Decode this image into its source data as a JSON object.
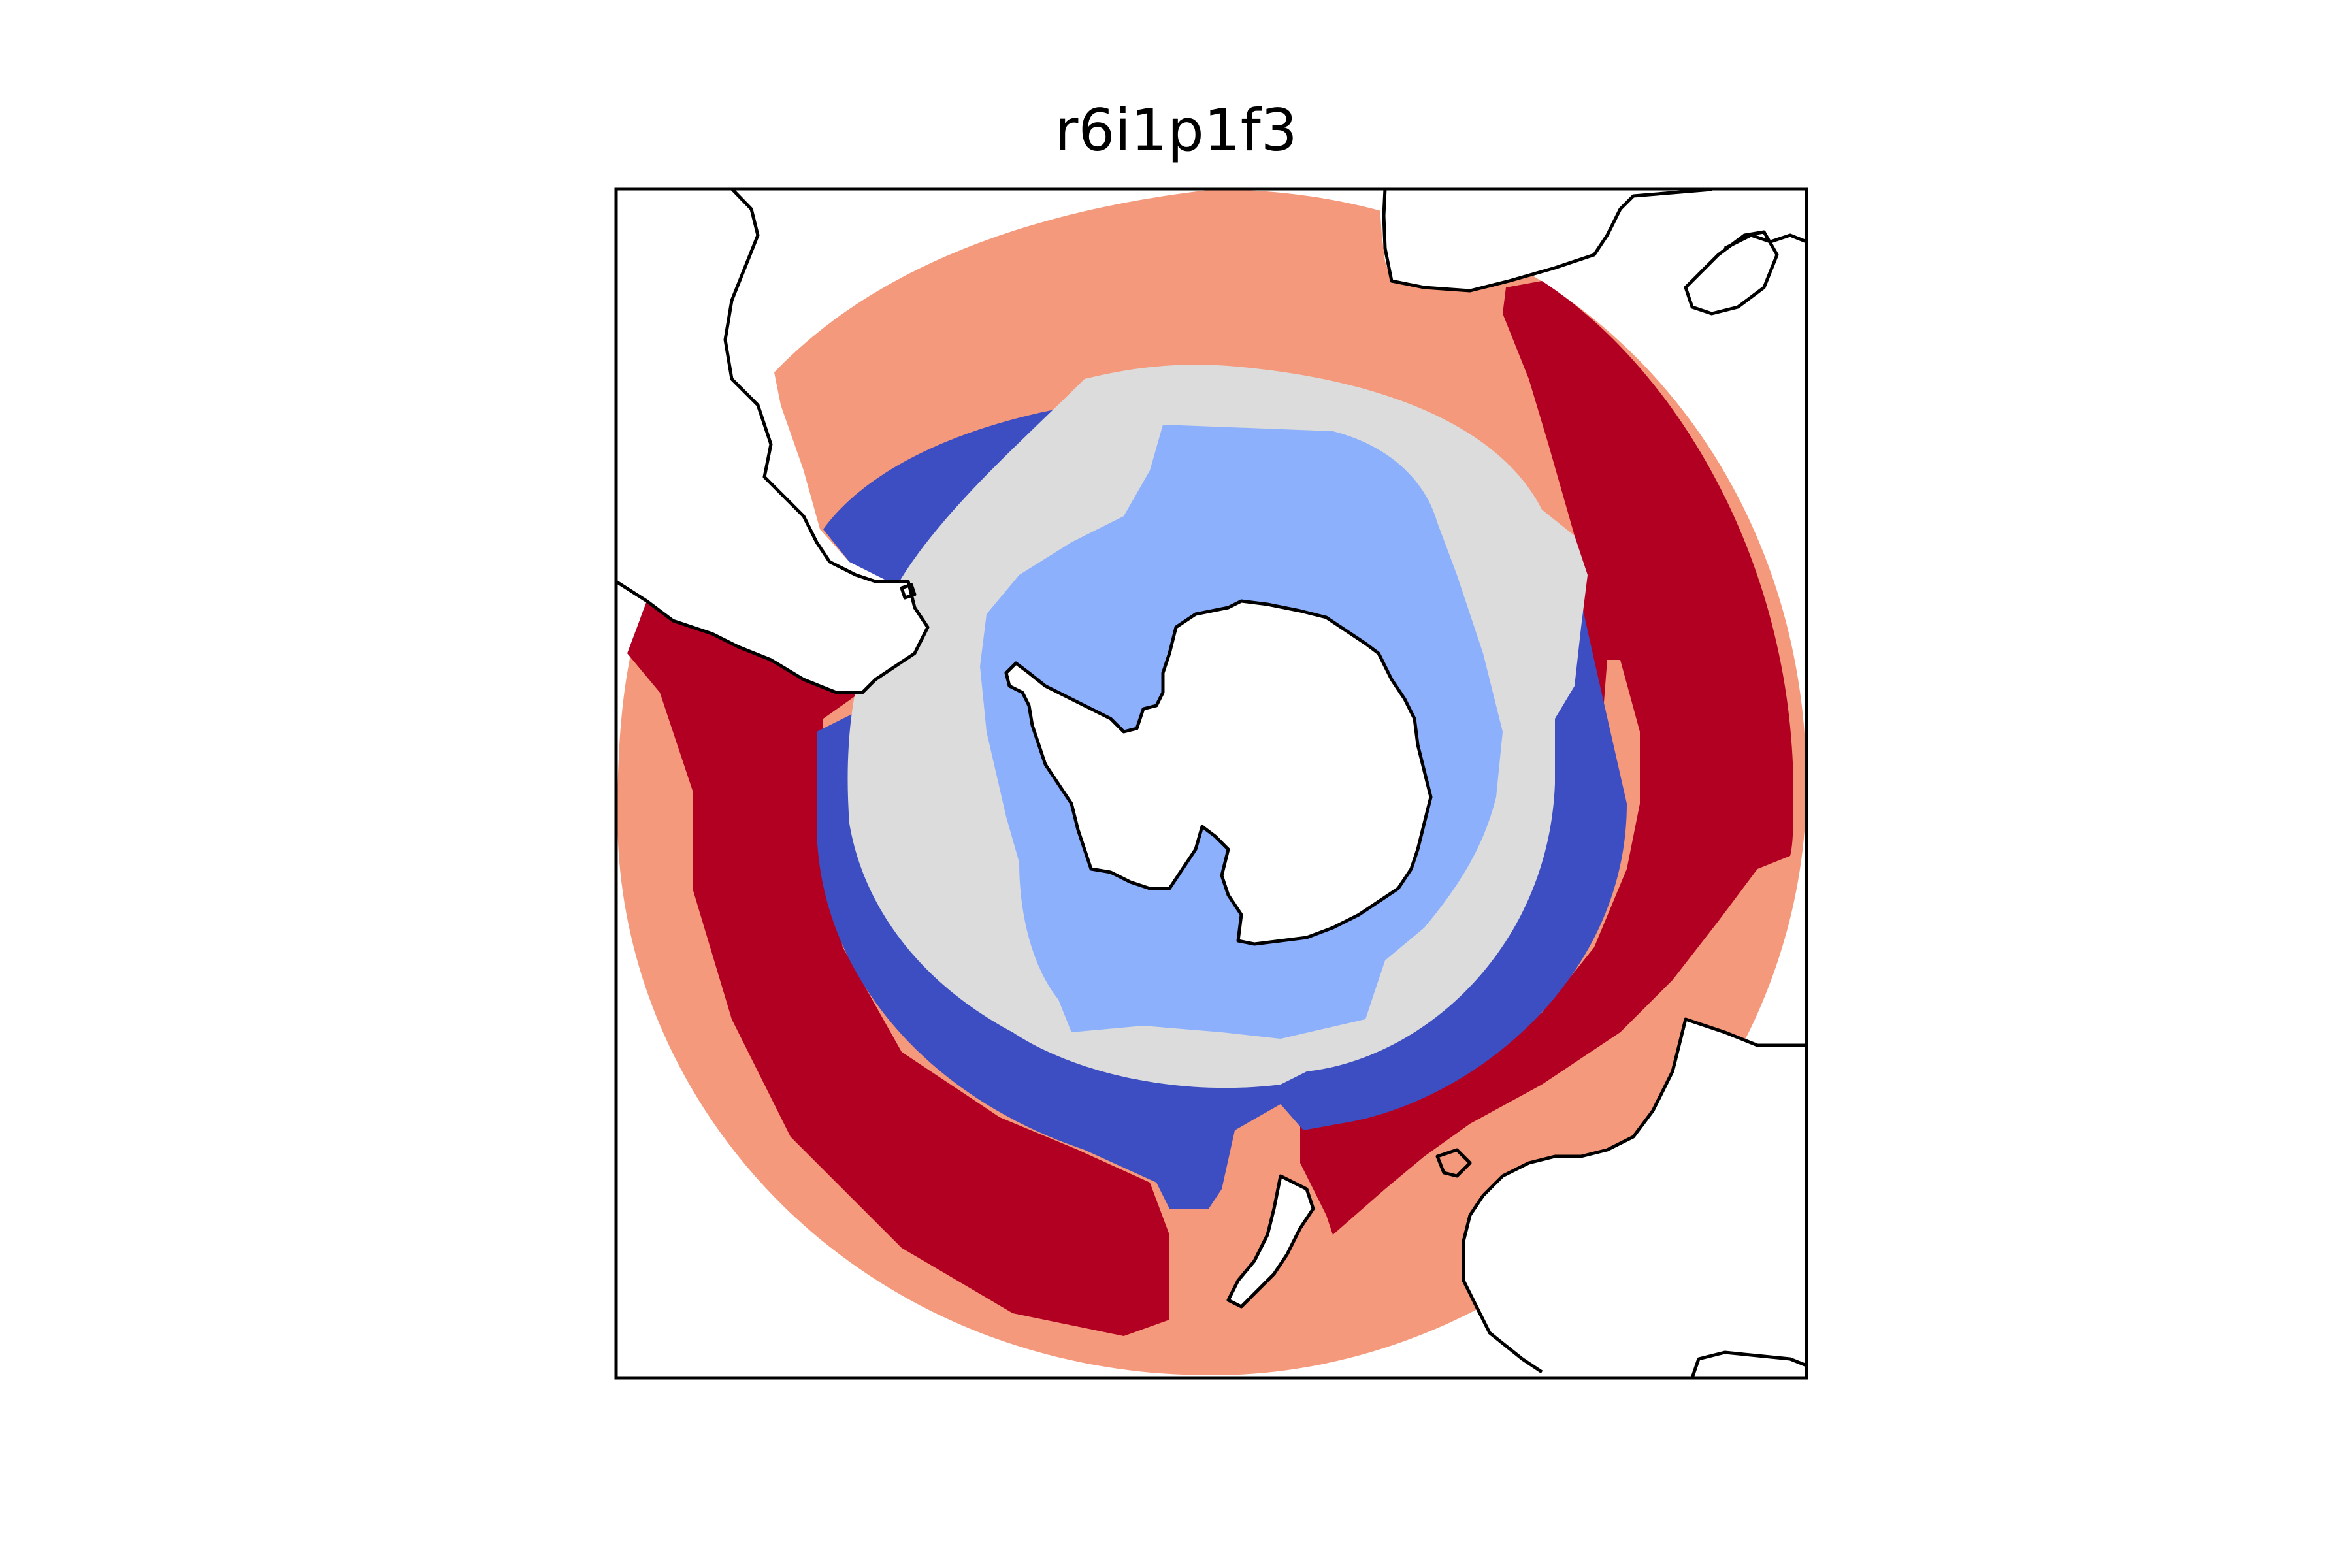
{
  "title": "r6i1p1f3",
  "projection": "south-polar-stereographic",
  "colors": {
    "outer_band": "#F4997B",
    "dark_red_band": "#B20022",
    "dark_blue_band": "#3D4EC2",
    "light_gray_band": "#DCDCDC",
    "light_blue_band": "#8DB0FC",
    "land": "#FFFFFF",
    "coastline": "#000000"
  }
}
